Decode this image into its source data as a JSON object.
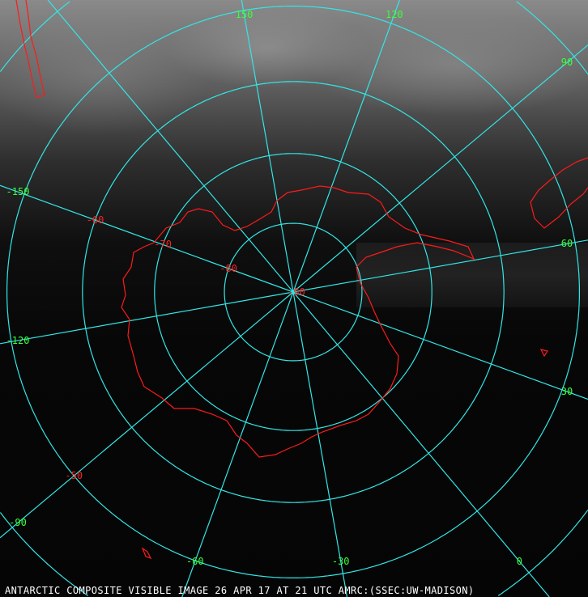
{
  "caption": "ANTARCTIC COMPOSITE VISIBLE IMAGE 26 APR 17 AT 21 UTC AMRC:(SSEC:UW-MADISON)",
  "colors": {
    "grid": "#33e6e6",
    "coastline": "#ff1a1a",
    "longitude_labels": "#3bff3b",
    "latitude_labels": "#ff2020",
    "caption": "#ffffff"
  },
  "projection": "south-polar-stereographic",
  "meridians": [
    {
      "lon": 150,
      "label": "150"
    },
    {
      "lon": 120,
      "label": "120"
    },
    {
      "lon": 90,
      "label": "90"
    },
    {
      "lon": 60,
      "label": "60"
    },
    {
      "lon": 30,
      "label": "30"
    },
    {
      "lon": 0,
      "label": "0"
    },
    {
      "lon": -30,
      "label": "-30"
    },
    {
      "lon": -60,
      "label": "-60"
    },
    {
      "lon": -90,
      "label": "-90"
    },
    {
      "lon": -120,
      "label": "-120"
    },
    {
      "lon": -150,
      "label": "-150"
    },
    {
      "lon": 180,
      "label": ""
    }
  ],
  "parallels": [
    {
      "lat": -80,
      "label": "-80",
      "label_lon": -150
    },
    {
      "lat": -70,
      "label": "-70",
      "label_lon": -150
    },
    {
      "lat": -60,
      "label": "-60",
      "label_lon": -150
    },
    {
      "lat": -50,
      "label": "-50",
      "label_lon": -90
    },
    {
      "lat": -40,
      "label": ""
    },
    {
      "lat": -30,
      "label": ""
    }
  ],
  "pole_label": "-90"
}
